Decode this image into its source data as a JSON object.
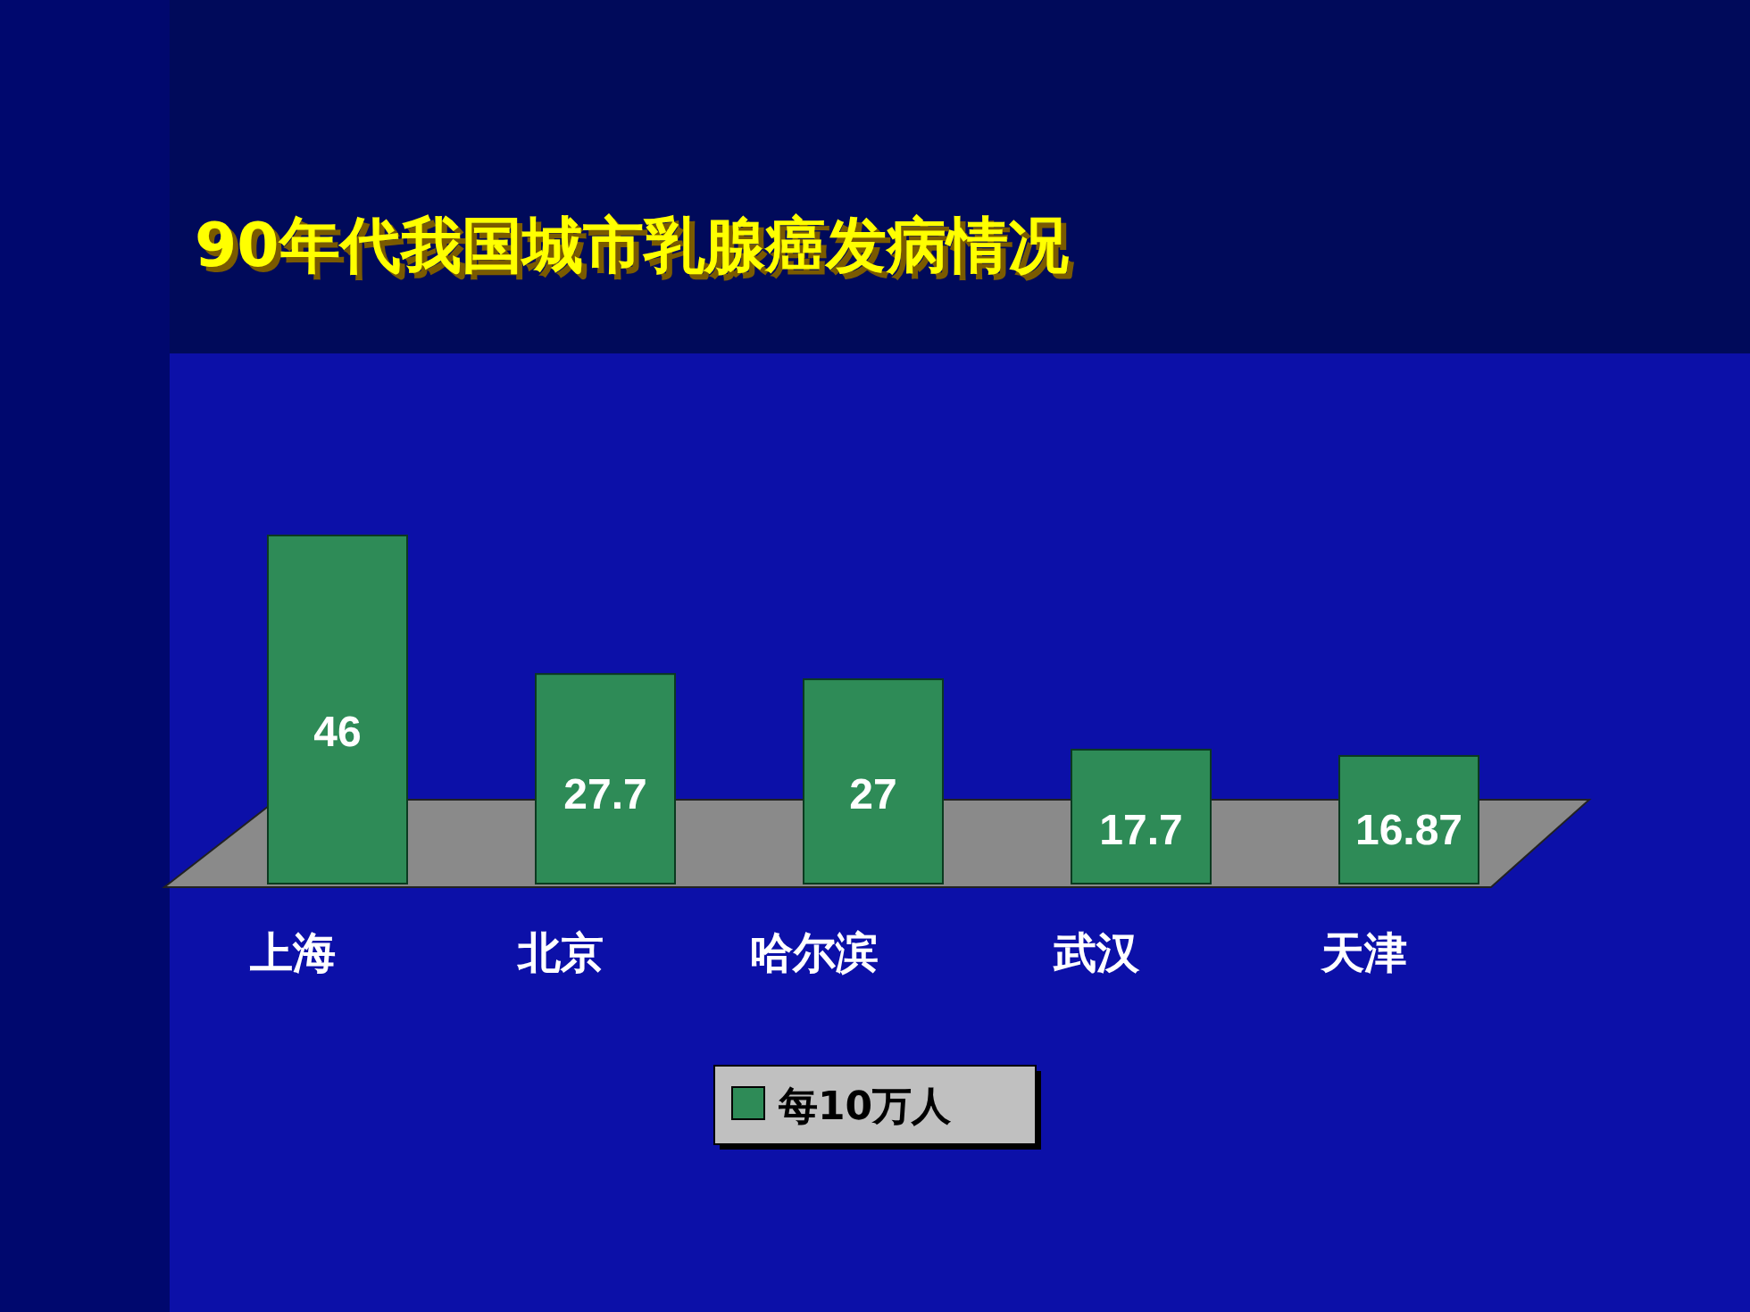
{
  "chart_data": {
    "type": "bar",
    "title": "90年代我国城市乳腺癌发病情况",
    "categories": [
      "上海",
      "北京",
      "哈尔滨",
      "武汉",
      "天津"
    ],
    "series": [
      {
        "name": "每10万人",
        "color": "#2e8b57",
        "values": [
          46,
          27.7,
          27,
          17.7,
          16.87
        ]
      }
    ],
    "data_labels": true,
    "legend": "bottom"
  }
}
